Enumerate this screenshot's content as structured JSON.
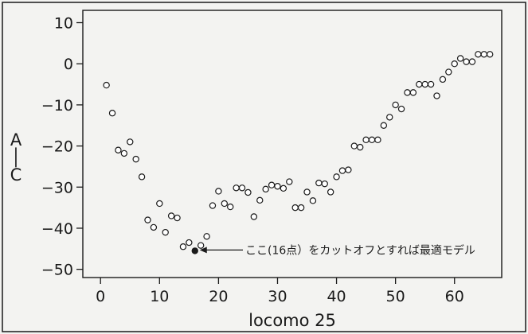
{
  "chart_data": {
    "type": "scatter",
    "title": "",
    "xlabel": "locomo 25",
    "ylabel": "AIC",
    "xlim": [
      -3,
      68
    ],
    "ylim": [
      -52,
      13
    ],
    "xticks": [
      0,
      10,
      20,
      30,
      40,
      50,
      60
    ],
    "yticks": [
      10,
      0,
      -10,
      -20,
      -30,
      -40,
      -50
    ],
    "grid": false,
    "legend": "none",
    "colors": {
      "point_edge": "#1a1a1a",
      "point_fill": "#ffffff",
      "highlight_fill": "#1a1a1a"
    },
    "series": [
      {
        "marker": "open-circle",
        "points": [
          [
            1,
            -5.2
          ],
          [
            2,
            -12
          ],
          [
            3,
            -21
          ],
          [
            4,
            -21.8
          ],
          [
            5,
            -19
          ],
          [
            6,
            -23.2
          ],
          [
            7,
            -27.5
          ],
          [
            8,
            -38
          ],
          [
            9,
            -39.8
          ],
          [
            10,
            -34
          ],
          [
            11,
            -41
          ],
          [
            12,
            -37
          ],
          [
            13,
            -37.5
          ],
          [
            14,
            -44.5
          ],
          [
            15,
            -43.5
          ],
          [
            16,
            -45.5
          ],
          [
            17,
            -44.2
          ],
          [
            18,
            -42
          ],
          [
            19,
            -34.5
          ],
          [
            20,
            -31
          ],
          [
            21,
            -34
          ],
          [
            22,
            -34.8
          ],
          [
            23,
            -30.2
          ],
          [
            24,
            -30.2
          ],
          [
            25,
            -31.3
          ],
          [
            26,
            -37.2
          ],
          [
            27,
            -33.2
          ],
          [
            28,
            -30.5
          ],
          [
            29,
            -29.5
          ],
          [
            30,
            -29.8
          ],
          [
            31,
            -30.3
          ],
          [
            32,
            -28.7
          ],
          [
            33,
            -35
          ],
          [
            34,
            -35
          ],
          [
            35,
            -31.2
          ],
          [
            36,
            -33.3
          ],
          [
            37,
            -29
          ],
          [
            38,
            -29.2
          ],
          [
            39,
            -31.2
          ],
          [
            40,
            -27.5
          ],
          [
            41,
            -26
          ],
          [
            42,
            -25.8
          ],
          [
            43,
            -20
          ],
          [
            44,
            -20.3
          ],
          [
            45,
            -18.5
          ],
          [
            46,
            -18.5
          ],
          [
            47,
            -18.5
          ],
          [
            48,
            -15
          ],
          [
            49,
            -13
          ],
          [
            50,
            -10
          ],
          [
            51,
            -11
          ],
          [
            52,
            -7
          ],
          [
            53,
            -7
          ],
          [
            54,
            -5
          ],
          [
            55,
            -5
          ],
          [
            56,
            -5
          ],
          [
            57,
            -7.8
          ],
          [
            58,
            -3.8
          ],
          [
            59,
            -2
          ],
          [
            60,
            0
          ],
          [
            61,
            1.3
          ],
          [
            62,
            0.5
          ],
          [
            63,
            0.5
          ],
          [
            64,
            2.3
          ],
          [
            65,
            2.3
          ],
          [
            66,
            2.3
          ]
        ]
      }
    ],
    "highlight": {
      "x": 16,
      "y": -45.5
    },
    "annotation": {
      "text": "ここ(16点）をカットオフとすれば最適モデル"
    }
  }
}
